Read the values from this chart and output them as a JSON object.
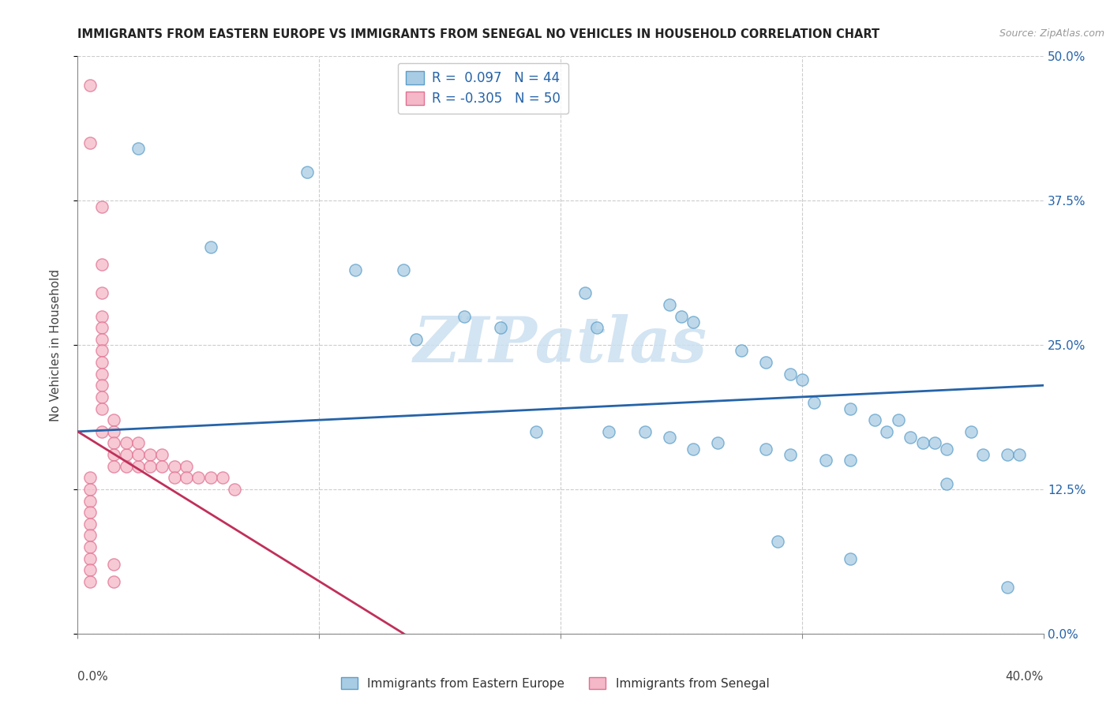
{
  "title": "IMMIGRANTS FROM EASTERN EUROPE VS IMMIGRANTS FROM SENEGAL NO VEHICLES IN HOUSEHOLD CORRELATION CHART",
  "source": "Source: ZipAtlas.com",
  "ylabel_label": "No Vehicles in Household",
  "legend_label_blue": "Immigrants from Eastern Europe",
  "legend_label_pink": "Immigrants from Senegal",
  "R_blue": 0.097,
  "N_blue": 44,
  "R_pink": -0.305,
  "N_pink": 50,
  "xlim": [
    0.0,
    0.4
  ],
  "ylim": [
    0.0,
    0.5
  ],
  "yticks": [
    0.0,
    0.125,
    0.25,
    0.375,
    0.5
  ],
  "xticks": [
    0.0,
    0.1,
    0.2,
    0.3,
    0.4
  ],
  "blue_color": "#a8cce4",
  "blue_edge_color": "#5b9ec9",
  "pink_color": "#f4b8c8",
  "pink_edge_color": "#e07090",
  "blue_line_color": "#2563a8",
  "pink_line_color": "#c0305a",
  "watermark_color": "#cce0f0",
  "blue_scatter": [
    [
      0.025,
      0.42
    ],
    [
      0.055,
      0.335
    ],
    [
      0.095,
      0.4
    ],
    [
      0.115,
      0.315
    ],
    [
      0.135,
      0.315
    ],
    [
      0.14,
      0.255
    ],
    [
      0.16,
      0.275
    ],
    [
      0.175,
      0.265
    ],
    [
      0.21,
      0.295
    ],
    [
      0.215,
      0.265
    ],
    [
      0.245,
      0.285
    ],
    [
      0.25,
      0.275
    ],
    [
      0.255,
      0.27
    ],
    [
      0.275,
      0.245
    ],
    [
      0.285,
      0.235
    ],
    [
      0.295,
      0.225
    ],
    [
      0.3,
      0.22
    ],
    [
      0.305,
      0.2
    ],
    [
      0.32,
      0.195
    ],
    [
      0.33,
      0.185
    ],
    [
      0.335,
      0.175
    ],
    [
      0.34,
      0.185
    ],
    [
      0.345,
      0.17
    ],
    [
      0.35,
      0.165
    ],
    [
      0.355,
      0.165
    ],
    [
      0.36,
      0.16
    ],
    [
      0.37,
      0.175
    ],
    [
      0.375,
      0.155
    ],
    [
      0.385,
      0.155
    ],
    [
      0.39,
      0.155
    ],
    [
      0.19,
      0.175
    ],
    [
      0.22,
      0.175
    ],
    [
      0.235,
      0.175
    ],
    [
      0.245,
      0.17
    ],
    [
      0.255,
      0.16
    ],
    [
      0.265,
      0.165
    ],
    [
      0.285,
      0.16
    ],
    [
      0.295,
      0.155
    ],
    [
      0.31,
      0.15
    ],
    [
      0.32,
      0.15
    ],
    [
      0.29,
      0.08
    ],
    [
      0.32,
      0.065
    ],
    [
      0.36,
      0.13
    ],
    [
      0.385,
      0.04
    ]
  ],
  "pink_scatter": [
    [
      0.005,
      0.475
    ],
    [
      0.005,
      0.425
    ],
    [
      0.01,
      0.37
    ],
    [
      0.01,
      0.32
    ],
    [
      0.01,
      0.295
    ],
    [
      0.01,
      0.275
    ],
    [
      0.01,
      0.265
    ],
    [
      0.01,
      0.255
    ],
    [
      0.01,
      0.245
    ],
    [
      0.01,
      0.235
    ],
    [
      0.01,
      0.225
    ],
    [
      0.01,
      0.215
    ],
    [
      0.01,
      0.205
    ],
    [
      0.01,
      0.195
    ],
    [
      0.015,
      0.185
    ],
    [
      0.015,
      0.175
    ],
    [
      0.015,
      0.165
    ],
    [
      0.015,
      0.155
    ],
    [
      0.015,
      0.145
    ],
    [
      0.02,
      0.145
    ],
    [
      0.02,
      0.155
    ],
    [
      0.02,
      0.165
    ],
    [
      0.025,
      0.145
    ],
    [
      0.025,
      0.155
    ],
    [
      0.025,
      0.165
    ],
    [
      0.03,
      0.155
    ],
    [
      0.03,
      0.145
    ],
    [
      0.035,
      0.155
    ],
    [
      0.035,
      0.145
    ],
    [
      0.04,
      0.145
    ],
    [
      0.04,
      0.135
    ],
    [
      0.045,
      0.145
    ],
    [
      0.045,
      0.135
    ],
    [
      0.05,
      0.135
    ],
    [
      0.055,
      0.135
    ],
    [
      0.06,
      0.135
    ],
    [
      0.065,
      0.125
    ],
    [
      0.005,
      0.135
    ],
    [
      0.005,
      0.125
    ],
    [
      0.005,
      0.115
    ],
    [
      0.005,
      0.105
    ],
    [
      0.005,
      0.095
    ],
    [
      0.005,
      0.085
    ],
    [
      0.005,
      0.075
    ],
    [
      0.005,
      0.065
    ],
    [
      0.005,
      0.055
    ],
    [
      0.005,
      0.045
    ],
    [
      0.01,
      0.175
    ],
    [
      0.015,
      0.06
    ],
    [
      0.015,
      0.045
    ]
  ],
  "blue_line": [
    [
      0.0,
      0.175
    ],
    [
      0.4,
      0.215
    ]
  ],
  "pink_line": [
    [
      0.0,
      0.175
    ],
    [
      0.135,
      0.0
    ]
  ]
}
